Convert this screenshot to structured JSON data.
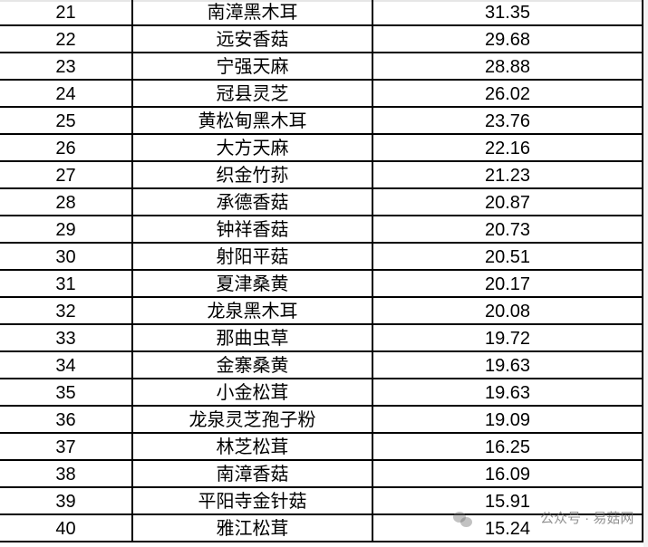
{
  "table": {
    "rows": [
      {
        "rank": "21",
        "name": "南漳黑木耳",
        "value": "31.35"
      },
      {
        "rank": "22",
        "name": "远安香菇",
        "value": "29.68"
      },
      {
        "rank": "23",
        "name": "宁强天麻",
        "value": "28.88"
      },
      {
        "rank": "24",
        "name": "冠县灵芝",
        "value": "26.02"
      },
      {
        "rank": "25",
        "name": "黄松甸黑木耳",
        "value": "23.76"
      },
      {
        "rank": "26",
        "name": "大方天麻",
        "value": "22.16"
      },
      {
        "rank": "27",
        "name": "织金竹荪",
        "value": "21.23"
      },
      {
        "rank": "28",
        "name": "承德香菇",
        "value": "20.87"
      },
      {
        "rank": "29",
        "name": "钟祥香菇",
        "value": "20.73"
      },
      {
        "rank": "30",
        "name": "射阳平菇",
        "value": "20.51"
      },
      {
        "rank": "31",
        "name": "夏津桑黄",
        "value": "20.17"
      },
      {
        "rank": "32",
        "name": "龙泉黑木耳",
        "value": "20.08"
      },
      {
        "rank": "33",
        "name": "那曲虫草",
        "value": "19.72"
      },
      {
        "rank": "34",
        "name": "金寨桑黄",
        "value": "19.63"
      },
      {
        "rank": "35",
        "name": "小金松茸",
        "value": "19.63"
      },
      {
        "rank": "36",
        "name": "龙泉灵芝孢子粉",
        "value": "19.09"
      },
      {
        "rank": "37",
        "name": "林芝松茸",
        "value": "16.25"
      },
      {
        "rank": "38",
        "name": "南漳香菇",
        "value": "16.09"
      },
      {
        "rank": "39",
        "name": "平阳寺金针菇",
        "value": "15.91"
      },
      {
        "rank": "40",
        "name": "雅江松茸",
        "value": "15.24"
      }
    ]
  },
  "watermark": {
    "text": "公众号 · 易菇网",
    "icon": "wechat-icon"
  }
}
